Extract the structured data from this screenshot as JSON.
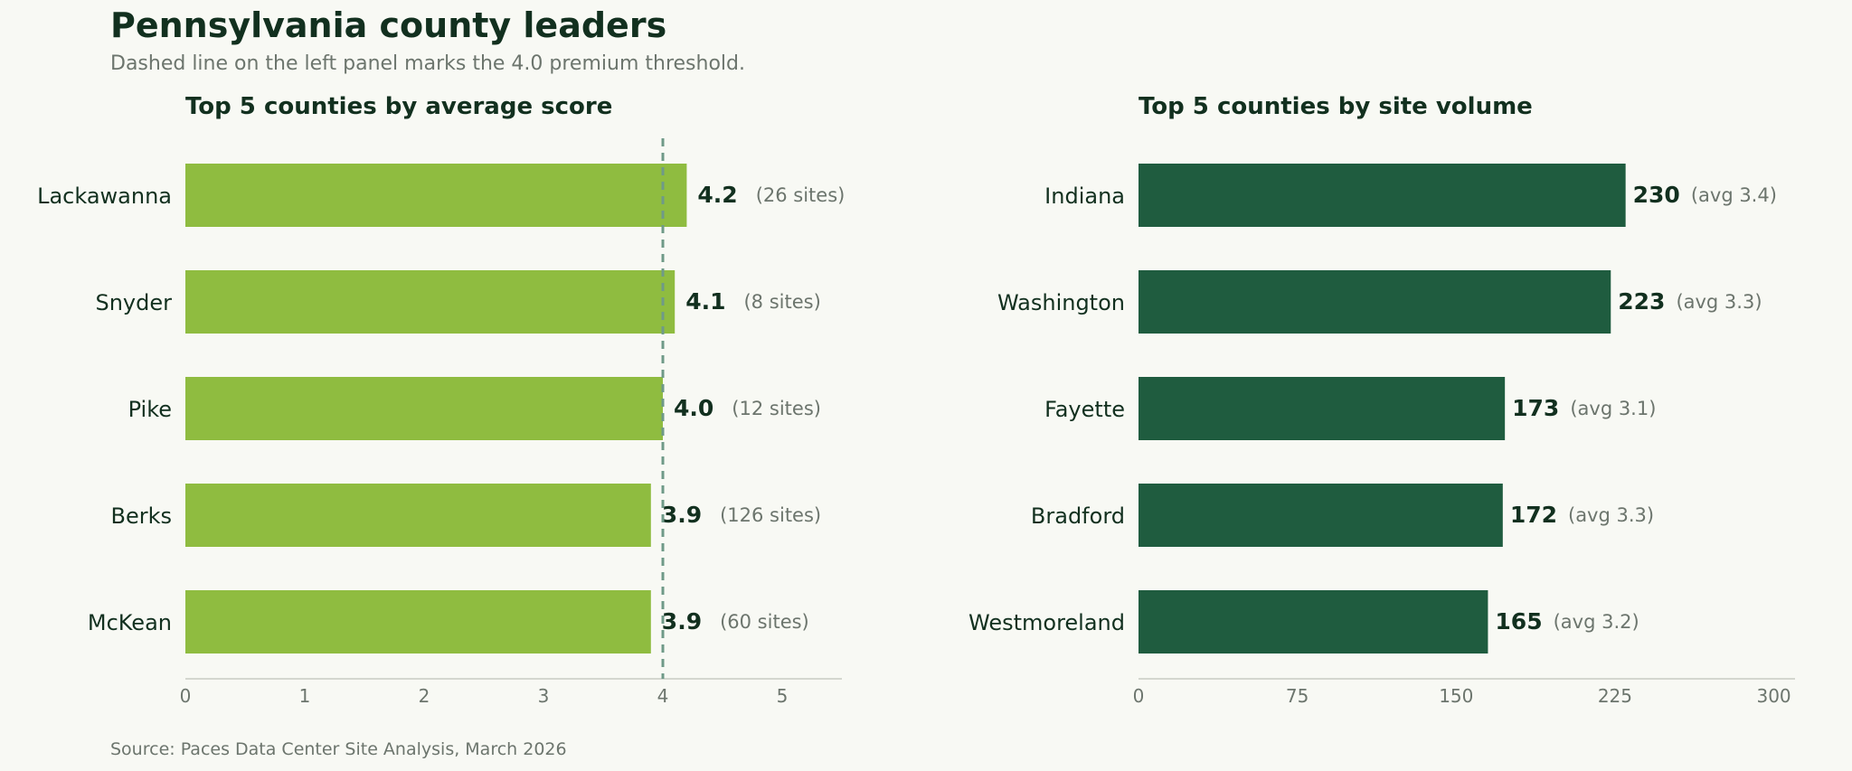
{
  "header": {
    "title": "Pennsylvania county leaders",
    "subtitle": "Dashed line on the left panel marks the 4.0 premium threshold."
  },
  "footer": {
    "source": "Source: Paces Data Center Site Analysis, March 2026"
  },
  "colors": {
    "left_bar": "#8fbc40",
    "right_bar": "#1f5c3f",
    "threshold_line": "#6f9a88",
    "axis_line": "#d4d7cf"
  },
  "chart_data": [
    {
      "type": "bar",
      "orientation": "horizontal",
      "title": "Top 5 counties by average score",
      "categories": [
        "Lackawanna",
        "Snyder",
        "Pike",
        "Berks",
        "McKean"
      ],
      "values": [
        4.2,
        4.1,
        4.0,
        3.9,
        3.9
      ],
      "value_labels": [
        "4.2",
        "4.1",
        "4.0",
        "3.9",
        "3.9"
      ],
      "annotations": [
        "(26 sites)",
        "(8 sites)",
        "(12 sites)",
        "(126 sites)",
        "(60 sites)"
      ],
      "xlim": [
        0,
        5.5
      ],
      "xticks": [
        0,
        1,
        2,
        3,
        4,
        5
      ],
      "xtick_labels": [
        "0",
        "1",
        "2",
        "3",
        "4",
        "5"
      ],
      "threshold": 4.0,
      "grid": false
    },
    {
      "type": "bar",
      "orientation": "horizontal",
      "title": "Top 5 counties by site volume",
      "categories": [
        "Indiana",
        "Washington",
        "Fayette",
        "Bradford",
        "Westmoreland"
      ],
      "values": [
        230,
        223,
        173,
        172,
        165
      ],
      "value_labels": [
        "230",
        "223",
        "173",
        "172",
        "165"
      ],
      "annotations": [
        "(avg 3.4)",
        "(avg 3.3)",
        "(avg 3.1)",
        "(avg 3.3)",
        "(avg 3.2)"
      ],
      "xlim": [
        0,
        310
      ],
      "xticks": [
        0,
        75,
        150,
        225,
        300
      ],
      "xtick_labels": [
        "0",
        "75",
        "150",
        "225",
        "300"
      ],
      "grid": false
    }
  ]
}
